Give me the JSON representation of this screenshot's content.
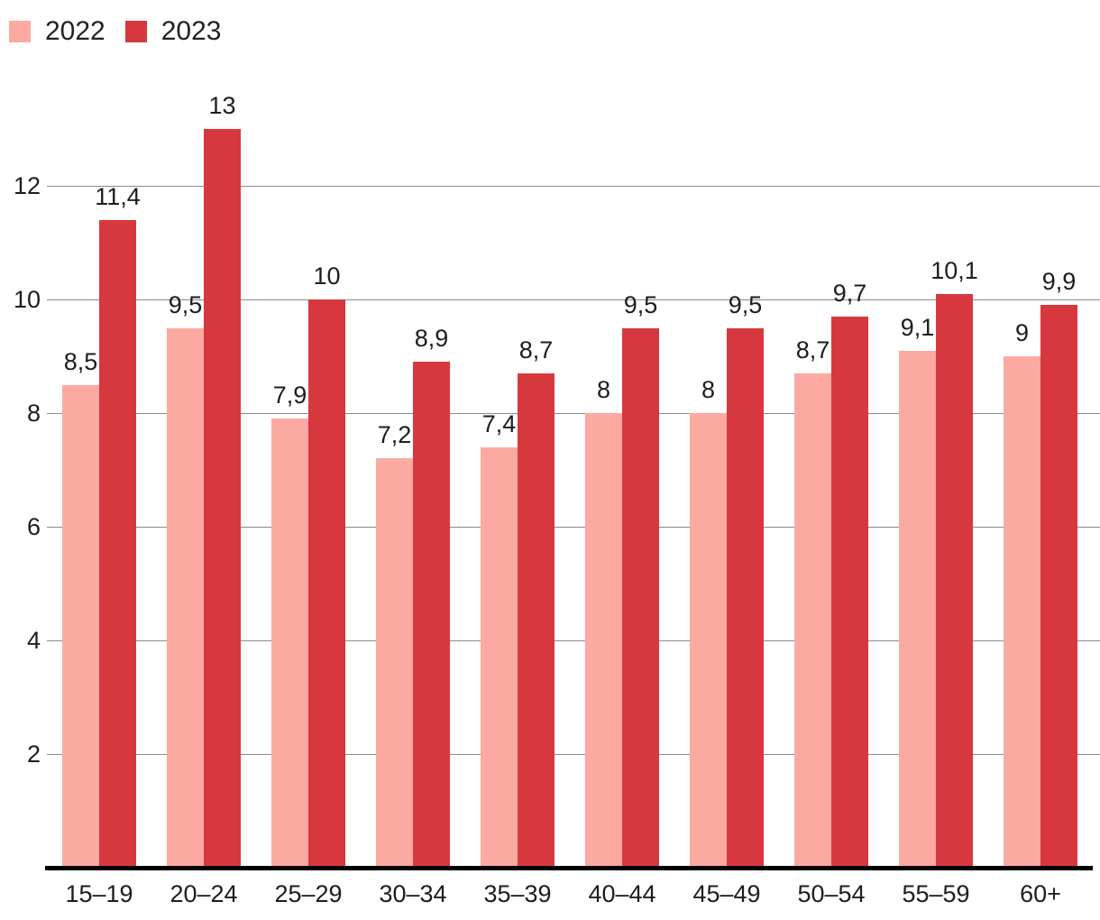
{
  "legend": {
    "items": [
      {
        "label": "2022",
        "color": "#FCA9A1"
      },
      {
        "label": "2023",
        "color": "#D7383E"
      }
    ]
  },
  "colors": {
    "series_2022": "#FCA9A1",
    "series_2023": "#D7383E",
    "text": "#1d1d1d",
    "gridline": "#8b8b8b",
    "axis_line": "#000000",
    "background": "#ffffff"
  },
  "chart_data": {
    "type": "bar",
    "title": "",
    "xlabel": "",
    "ylabel": "",
    "categories": [
      "15–19",
      "20–24",
      "25–29",
      "30–34",
      "35–39",
      "40–44",
      "45–49",
      "50–54",
      "55–59",
      "60+"
    ],
    "series": [
      {
        "name": "2022",
        "color": "#FCA9A1",
        "values": [
          8.5,
          9.5,
          7.9,
          7.2,
          7.4,
          8,
          8,
          8.7,
          9.1,
          9
        ],
        "labels": [
          "8,5",
          "9,5",
          "7,9",
          "7,2",
          "7,4",
          "8",
          "8",
          "8,7",
          "9,1",
          "9"
        ]
      },
      {
        "name": "2023",
        "color": "#D7383E",
        "values": [
          11.4,
          13,
          10,
          8.9,
          8.7,
          9.5,
          9.5,
          9.7,
          10.1,
          9.9
        ],
        "labels": [
          "11,4",
          "13",
          "10",
          "8,9",
          "8,7",
          "9,5",
          "9,5",
          "9,7",
          "10,1",
          "9,9"
        ]
      }
    ],
    "y_ticks": [
      2,
      4,
      6,
      8,
      10,
      12
    ],
    "y_tick_labels": [
      "2",
      "4",
      "6",
      "8",
      "10",
      "12"
    ],
    "ylim": [
      0,
      13.5
    ],
    "grid": "horizontal",
    "legend_position": "top-left",
    "decimal_separator": ",",
    "bar_labels_shown": true
  }
}
